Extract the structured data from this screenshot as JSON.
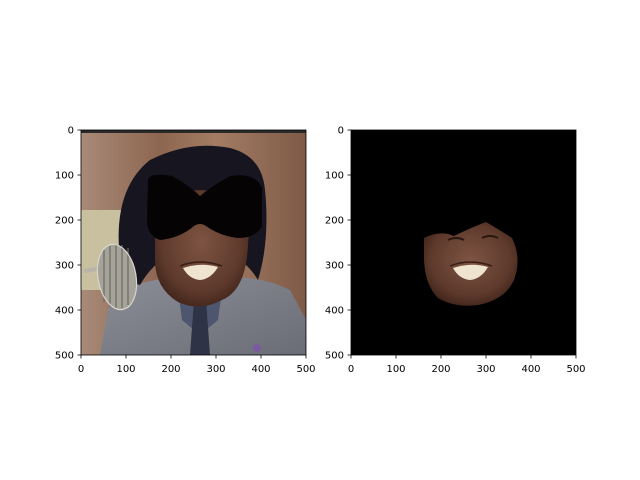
{
  "chart_data": [
    {
      "type": "image",
      "panel": "left",
      "content": "original photo: man with voluminous black hair, gray suit, dark tie, vintage microphone; black mask drawn over the eyes/forehead region",
      "xlim": [
        0,
        500
      ],
      "ylim": [
        500,
        0
      ],
      "xticks": [
        0,
        100,
        200,
        300,
        400,
        500
      ],
      "yticks": [
        0,
        100,
        200,
        300,
        400,
        500
      ],
      "xtick_labels": [
        "0",
        "100",
        "200",
        "300",
        "400",
        "500"
      ],
      "ytick_labels": [
        "0",
        "100",
        "200",
        "300",
        "400",
        "500"
      ]
    },
    {
      "type": "image",
      "panel": "right",
      "content": "segmented face region on black background (lower face only)",
      "xlim": [
        0,
        500
      ],
      "ylim": [
        500,
        0
      ],
      "xticks": [
        0,
        100,
        200,
        300,
        400,
        500
      ],
      "yticks": [
        0,
        100,
        200,
        300,
        400,
        500
      ],
      "xtick_labels": [
        "0",
        "100",
        "200",
        "300",
        "400",
        "500"
      ],
      "ytick_labels": [
        "0",
        "100",
        "200",
        "300",
        "400",
        "500"
      ]
    }
  ],
  "colors": {
    "wood_panel": "#9a7560",
    "hair": "#15131f",
    "skin": "#6a4434",
    "suit": "#7d7f88",
    "mask": "#000000",
    "background_black": "#000000"
  }
}
